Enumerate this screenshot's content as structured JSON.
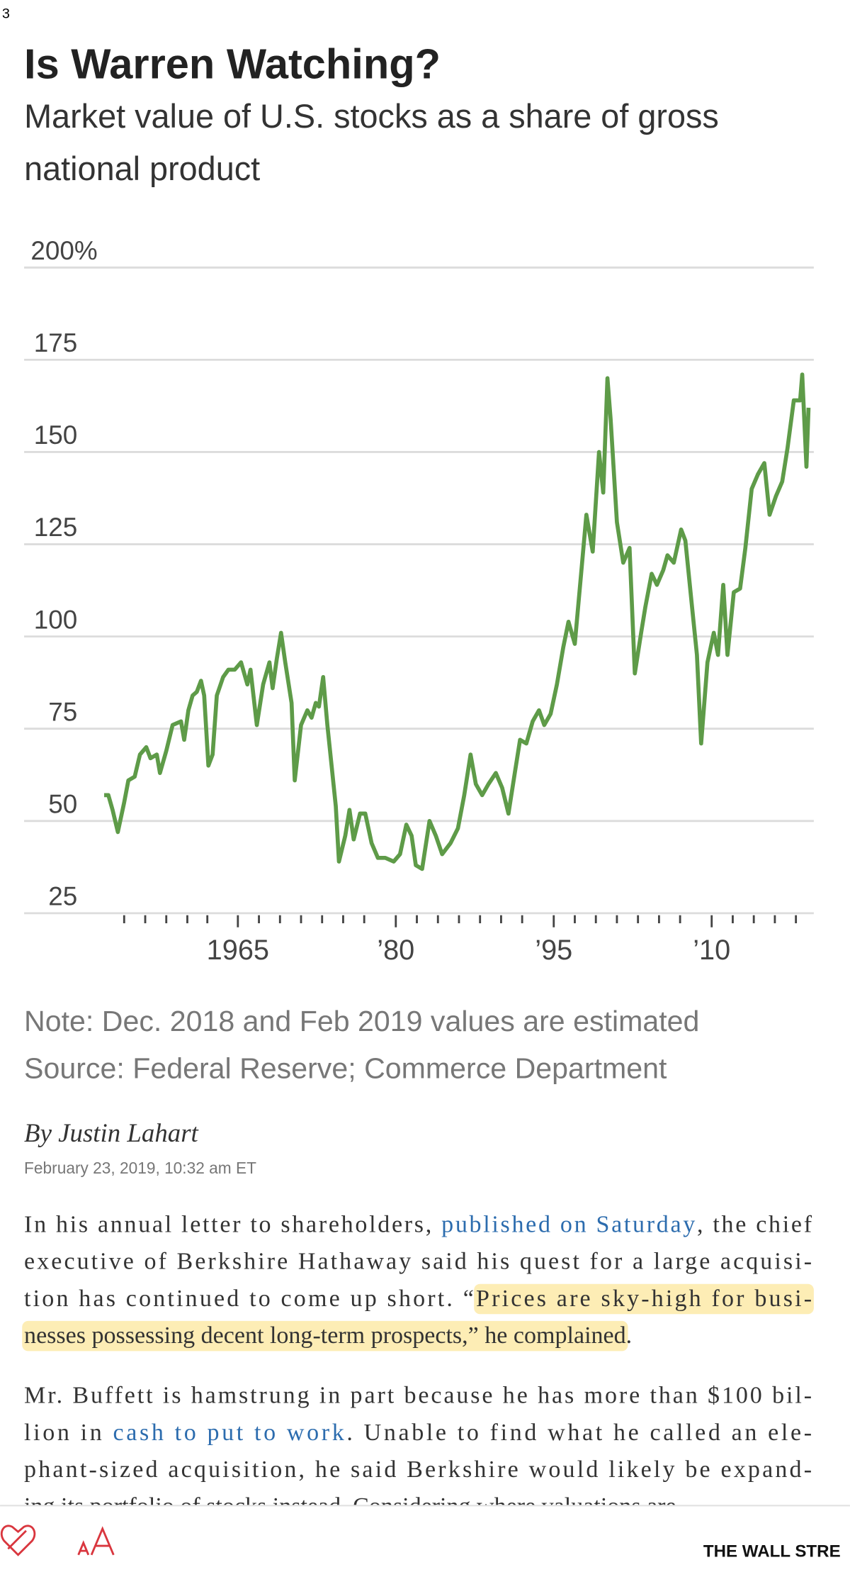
{
  "status_text": "3",
  "chart_data": {
    "type": "line",
    "title": "Is Warren Watching?",
    "subtitle": "Market value of U.S. stocks as a share of gross national product",
    "note": "Note: Dec. 2018 and Feb 2019 values are estimated",
    "source": "Source: Federal Reserve; Commerce Department",
    "color": "#5e9b48",
    "grid": true,
    "xlim": [
      1944.7,
      2019.7
    ],
    "ylim": [
      25,
      200
    ],
    "yticks": [
      {
        "value": 200,
        "label": "200%"
      },
      175,
      150,
      125,
      100,
      75,
      50,
      25
    ],
    "xticks": [
      1965,
      {
        "value": 1980,
        "label": "’80"
      },
      {
        "value": 1995,
        "label": "’95"
      },
      {
        "value": 2010,
        "label": "’10"
      }
    ],
    "x_minor_ticks": [
      1954.2,
      1956.2,
      1958.2,
      1960.2,
      1962.1,
      1967,
      1969,
      1971,
      1973,
      1975,
      1977,
      1982,
      1984,
      1986,
      1988,
      1990,
      1992,
      1997,
      1999,
      2001,
      2003,
      2005,
      2007,
      2012,
      2014,
      2016,
      2018
    ],
    "x": [
      1952.3,
      1952.7,
      1953.1,
      1953.6,
      1954.2,
      1954.6,
      1955.2,
      1955.7,
      1956.3,
      1956.7,
      1957.3,
      1957.6,
      1958.2,
      1958.8,
      1959.6,
      1959.9,
      1960.3,
      1960.7,
      1961.1,
      1961.5,
      1961.8,
      1962.2,
      1962.6,
      1963.0,
      1963.6,
      1964.1,
      1964.7,
      1965.3,
      1965.9,
      1966.2,
      1966.8,
      1967.4,
      1968.0,
      1968.3,
      1968.7,
      1969.1,
      1969.5,
      1970.1,
      1970.4,
      1971.0,
      1971.6,
      1972.0,
      1972.4,
      1972.7,
      1973.1,
      1973.5,
      1973.9,
      1974.3,
      1974.6,
      1975.2,
      1975.6,
      1976.0,
      1976.6,
      1977.1,
      1977.7,
      1978.3,
      1979.0,
      1979.8,
      1980.4,
      1981.0,
      1981.5,
      1981.9,
      1982.5,
      1983.2,
      1983.8,
      1984.4,
      1985.2,
      1985.9,
      1986.5,
      1987.1,
      1987.6,
      1988.2,
      1988.8,
      1989.5,
      1990.1,
      1990.7,
      1991.3,
      1991.8,
      1992.4,
      1993.0,
      1993.6,
      1994.1,
      1994.7,
      1995.3,
      1995.9,
      1996.4,
      1997.0,
      1997.6,
      1998.1,
      1998.7,
      1999.3,
      1999.7,
      2000.1,
      2000.4,
      2001.0,
      2001.6,
      2002.2,
      2002.7,
      2003.3,
      2003.7,
      2004.3,
      2004.8,
      2005.4,
      2005.8,
      2006.4,
      2007.1,
      2007.5,
      2008.1,
      2008.6,
      2009.0,
      2009.6,
      2010.2,
      2010.6,
      2011.1,
      2011.5,
      2012.1,
      2012.7,
      2013.2,
      2013.8,
      2014.4,
      2015.0,
      2015.5,
      2016.1,
      2016.7,
      2017.2,
      2017.8,
      2018.4,
      2018.6,
      2019.0,
      2019.2
    ],
    "values": [
      57,
      57,
      53,
      47,
      55,
      61,
      62,
      68,
      70,
      67,
      68,
      63,
      69,
      76,
      77,
      72,
      80,
      84,
      85,
      88,
      84,
      65,
      68,
      84,
      89,
      91,
      91,
      93,
      87,
      91,
      76,
      87,
      93,
      86,
      94,
      101,
      93,
      82,
      61,
      76,
      80,
      78,
      82,
      81,
      89,
      76,
      65,
      54,
      39,
      46,
      53,
      45,
      52,
      52,
      44,
      40,
      40,
      39,
      41,
      49,
      46,
      38,
      37,
      50,
      46,
      41,
      44,
      48,
      57,
      68,
      60,
      57,
      60,
      63,
      59,
      52,
      63,
      72,
      71,
      77,
      80,
      76,
      79,
      87,
      97,
      104,
      98,
      117,
      133,
      123,
      150,
      139,
      170,
      159,
      131,
      120,
      124,
      90,
      101,
      108,
      117,
      114,
      118,
      122,
      120,
      129,
      126,
      109,
      95,
      71,
      93,
      101,
      95,
      114,
      95,
      112,
      113,
      124,
      140,
      144,
      147,
      133,
      138,
      142,
      151,
      164,
      164,
      171,
      146,
      162
    ]
  },
  "article": {
    "byline": "By Justin Lahart",
    "date": "February 23, 2019, 10:32 am ET",
    "paragraphs": [
      {
        "lines": [
          [
            {
              "text": "In his annual letter to shareholders, "
            },
            {
              "text": "published on Saturday",
              "link": true
            },
            {
              "text": ", the chief"
            }
          ],
          [
            {
              "text": "executive of Berkshire Hathaway said his quest for a large acquisi-"
            }
          ],
          [
            {
              "text": "tion has continued to come up short. “"
            },
            {
              "text": "Prices are sky-high for busi-",
              "highlight": true
            }
          ],
          [
            {
              "text": "nesses possessing decent long-term prospects,” he complained",
              "highlight": true
            },
            {
              "text": "."
            }
          ]
        ]
      },
      {
        "lines": [
          [
            {
              "text": "Mr. Buffett is hamstrung in part because he has more than $100 bil-"
            }
          ],
          [
            {
              "text": "lion in "
            },
            {
              "text": "cash to put to work",
              "link": true
            },
            {
              "text": ". Unable to find what he called an ele-"
            }
          ],
          [
            {
              "text": "phant-sized acquisition, he said Berkshire would likely be expand-"
            }
          ],
          [
            {
              "text": "ing its portfolio of stocks instead. Considering where valuations are"
            }
          ]
        ]
      }
    ]
  },
  "bottom_bar": {
    "brand": "THE WALL STRE"
  }
}
